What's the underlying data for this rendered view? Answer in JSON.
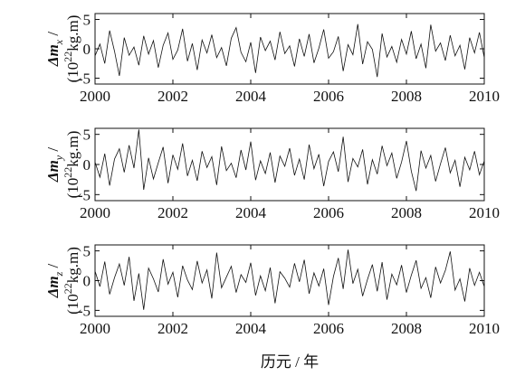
{
  "chart_data": [
    {
      "type": "line",
      "ylabel": {
        "symbol": "Δm",
        "subscript": "x",
        "suffix": " /",
        "unit_open": "(10",
        "unit_power": "22",
        "unit_rest": "kg.m)"
      },
      "x": [
        2000,
        2000.125,
        2000.25,
        2000.375,
        2000.5,
        2000.625,
        2000.75,
        2000.875,
        2001,
        2001.125,
        2001.25,
        2001.375,
        2001.5,
        2001.625,
        2001.75,
        2001.875,
        2002,
        2002.125,
        2002.25,
        2002.375,
        2002.5,
        2002.625,
        2002.75,
        2002.875,
        2003,
        2003.125,
        2003.25,
        2003.375,
        2003.5,
        2003.625,
        2003.75,
        2003.875,
        2004,
        2004.125,
        2004.25,
        2004.375,
        2004.5,
        2004.625,
        2004.75,
        2004.875,
        2005,
        2005.125,
        2005.25,
        2005.375,
        2005.5,
        2005.625,
        2005.75,
        2005.875,
        2006,
        2006.125,
        2006.25,
        2006.375,
        2006.5,
        2006.625,
        2006.75,
        2006.875,
        2007,
        2007.125,
        2007.25,
        2007.375,
        2007.5,
        2007.625,
        2007.75,
        2007.875,
        2008,
        2008.125,
        2008.25,
        2008.375,
        2008.5,
        2008.625,
        2008.75,
        2008.875,
        2009,
        2009.125,
        2009.25,
        2009.375,
        2009.5,
        2009.625,
        2009.75,
        2009.875,
        2010
      ],
      "series": [
        {
          "color": "#111111",
          "values": [
            -1.2,
            0.8,
            -2.5,
            3.1,
            -0.4,
            -4.6,
            1.9,
            -1.1,
            0.3,
            -2.8,
            2.2,
            -0.9,
            1.4,
            -3.2,
            0.6,
            2.7,
            -1.8,
            -0.2,
            3.4,
            -2.1,
            0.9,
            -3.6,
            1.5,
            -0.7,
            2.4,
            -1.5,
            0.2,
            -2.9,
            1.8,
            3.6,
            -0.6,
            -2.2,
            1.1,
            -4.1,
            2.0,
            -0.3,
            1.3,
            -1.9,
            2.9,
            -0.8,
            0.5,
            -3.0,
            1.7,
            -1.3,
            2.5,
            -2.4,
            0.1,
            3.3,
            -1.6,
            -0.5,
            2.1,
            -3.8,
            0.7,
            -1.0,
            4.2,
            -2.6,
            1.2,
            -0.1,
            -4.8,
            2.6,
            -1.4,
            0.4,
            -2.3,
            1.6,
            -0.9,
            3.0,
            -1.7,
            0.8,
            -3.3,
            4.1,
            -0.4,
            1.0,
            -2.0,
            2.3,
            -1.2,
            0.6,
            -3.5,
            1.9,
            -0.7,
            2.8,
            -1.5
          ]
        }
      ],
      "xlim": [
        2000,
        2010
      ],
      "xticks": [
        2000,
        2002,
        2004,
        2006,
        2008,
        2010
      ],
      "ylim": [
        -6,
        6
      ],
      "yticks": [
        -5,
        0,
        5
      ]
    },
    {
      "type": "line",
      "ylabel": {
        "symbol": "Δm",
        "subscript": "y",
        "suffix": " /",
        "unit_open": "(10",
        "unit_power": "22",
        "unit_rest": "kg.m)"
      },
      "x": [
        2000,
        2000.125,
        2000.25,
        2000.375,
        2000.5,
        2000.625,
        2000.75,
        2000.875,
        2001,
        2001.125,
        2001.25,
        2001.375,
        2001.5,
        2001.625,
        2001.75,
        2001.875,
        2002,
        2002.125,
        2002.25,
        2002.375,
        2002.5,
        2002.625,
        2002.75,
        2002.875,
        2003,
        2003.125,
        2003.25,
        2003.375,
        2003.5,
        2003.625,
        2003.75,
        2003.875,
        2004,
        2004.125,
        2004.25,
        2004.375,
        2004.5,
        2004.625,
        2004.75,
        2004.875,
        2005,
        2005.125,
        2005.25,
        2005.375,
        2005.5,
        2005.625,
        2005.75,
        2005.875,
        2006,
        2006.125,
        2006.25,
        2006.375,
        2006.5,
        2006.625,
        2006.75,
        2006.875,
        2007,
        2007.125,
        2007.25,
        2007.375,
        2007.5,
        2007.625,
        2007.75,
        2007.875,
        2008,
        2008.125,
        2008.25,
        2008.375,
        2008.5,
        2008.625,
        2008.75,
        2008.875,
        2009,
        2009.125,
        2009.25,
        2009.375,
        2009.5,
        2009.625,
        2009.75,
        2009.875,
        2010
      ],
      "series": [
        {
          "color": "#111111",
          "values": [
            0.4,
            -2.1,
            1.8,
            -3.5,
            0.9,
            2.6,
            -1.3,
            3.2,
            -0.6,
            5.8,
            -4.2,
            1.1,
            -2.4,
            0.3,
            2.9,
            -3.1,
            1.6,
            -0.8,
            3.5,
            -1.9,
            0.7,
            -2.7,
            2.2,
            -0.5,
            1.3,
            -3.4,
            3.0,
            -1.0,
            0.2,
            -2.2,
            2.4,
            -0.9,
            3.8,
            -2.6,
            0.6,
            -1.5,
            2.0,
            -3.0,
            1.4,
            -0.3,
            2.7,
            -1.8,
            0.9,
            -2.5,
            3.3,
            -0.7,
            1.7,
            -3.6,
            0.5,
            2.1,
            -1.2,
            4.6,
            -2.9,
            1.0,
            -0.4,
            2.5,
            -3.3,
            0.8,
            -1.6,
            3.1,
            -0.2,
            1.9,
            -2.3,
            0.4,
            3.9,
            -1.1,
            -4.4,
            2.3,
            -0.6,
            1.5,
            -2.8,
            0.1,
            2.8,
            -1.4,
            0.7,
            -3.7,
            1.2,
            -0.9,
            2.2,
            -1.7,
            0.6
          ]
        }
      ],
      "xlim": [
        2000,
        2010
      ],
      "xticks": [
        2000,
        2002,
        2004,
        2006,
        2008,
        2010
      ],
      "ylim": [
        -6,
        6
      ],
      "yticks": [
        -5,
        0,
        5
      ]
    },
    {
      "type": "line",
      "ylabel": {
        "symbol": "Δm",
        "subscript": "z",
        "suffix": " /",
        "unit_open": "(10",
        "unit_power": "22",
        "unit_rest": "kg.m)"
      },
      "xlabel": "历元 / 年",
      "x": [
        2000,
        2000.125,
        2000.25,
        2000.375,
        2000.5,
        2000.625,
        2000.75,
        2000.875,
        2001,
        2001.125,
        2001.25,
        2001.375,
        2001.5,
        2001.625,
        2001.75,
        2001.875,
        2002,
        2002.125,
        2002.25,
        2002.375,
        2002.5,
        2002.625,
        2002.75,
        2002.875,
        2003,
        2003.125,
        2003.25,
        2003.375,
        2003.5,
        2003.625,
        2003.75,
        2003.875,
        2004,
        2004.125,
        2004.25,
        2004.375,
        2004.5,
        2004.625,
        2004.75,
        2004.875,
        2005,
        2005.125,
        2005.25,
        2005.375,
        2005.5,
        2005.625,
        2005.75,
        2005.875,
        2006,
        2006.125,
        2006.25,
        2006.375,
        2006.5,
        2006.625,
        2006.75,
        2006.875,
        2007,
        2007.125,
        2007.25,
        2007.375,
        2007.5,
        2007.625,
        2007.75,
        2007.875,
        2008,
        2008.125,
        2008.25,
        2008.375,
        2008.5,
        2008.625,
        2008.75,
        2008.875,
        2009,
        2009.125,
        2009.25,
        2009.375,
        2009.5,
        2009.625,
        2009.75,
        2009.875,
        2010
      ],
      "series": [
        {
          "color": "#111111",
          "values": [
            1.6,
            -1.0,
            3.2,
            -2.3,
            0.5,
            2.8,
            -0.8,
            4.0,
            -3.4,
            1.2,
            -4.9,
            2.1,
            0.3,
            -1.9,
            3.6,
            -0.6,
            1.4,
            -2.8,
            2.5,
            0.1,
            -1.5,
            3.3,
            -0.4,
            1.8,
            -3.0,
            4.7,
            -1.2,
            0.6,
            2.4,
            -2.0,
            1.0,
            -0.3,
            3.0,
            -2.5,
            0.8,
            -1.7,
            2.2,
            -3.8,
            1.5,
            0.4,
            -1.1,
            2.9,
            -0.2,
            3.5,
            -2.2,
            1.3,
            -0.9,
            2.0,
            -4.1,
            0.7,
            3.8,
            -1.4,
            5.2,
            -0.5,
            1.9,
            -2.6,
            0.2,
            2.7,
            -1.8,
            3.1,
            -3.2,
            1.1,
            -0.7,
            2.6,
            -2.0,
            0.9,
            3.4,
            -1.3,
            0.5,
            -2.9,
            2.3,
            -0.4,
            1.7,
            4.9,
            -1.6,
            0.3,
            -3.5,
            2.1,
            -0.8,
            1.4,
            -1.0
          ]
        }
      ],
      "xlim": [
        2000,
        2010
      ],
      "xticks": [
        2000,
        2002,
        2004,
        2006,
        2008,
        2010
      ],
      "ylim": [
        -6,
        6
      ],
      "yticks": [
        -5,
        0,
        5
      ]
    }
  ]
}
